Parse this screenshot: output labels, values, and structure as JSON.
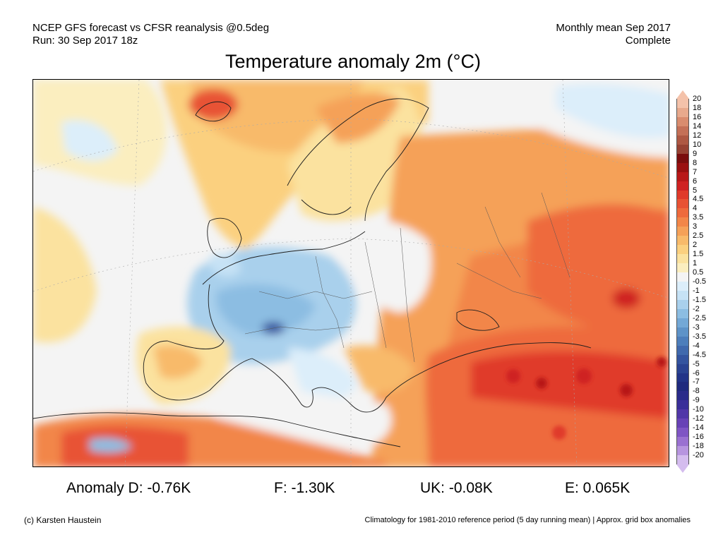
{
  "header": {
    "line1_left": "NCEP GFS forecast vs CFSR reanalysis @0.5deg",
    "line2_left": "Run: 30 Sep 2017 18z",
    "line1_right": "Monthly mean Sep 2017",
    "line2_right": "Complete"
  },
  "title": "Temperature anomaly 2m (°C)",
  "legend": {
    "labels": [
      "20",
      "18",
      "16",
      "14",
      "12",
      "10",
      "9",
      "8",
      "7",
      "6",
      "5",
      "4.5",
      "4",
      "3.5",
      "3",
      "2.5",
      "2",
      "1.5",
      "1",
      "0.5",
      "-0.5",
      "-1",
      "-1.5",
      "-2",
      "-2.5",
      "-3",
      "-3.5",
      "-4",
      "-4.5",
      "-5",
      "-6",
      "-7",
      "-8",
      "-9",
      "-10",
      "-12",
      "-14",
      "-16",
      "-18",
      "-20"
    ],
    "colors": [
      "#f4c2aa",
      "#e8a98c",
      "#d98c6e",
      "#c47057",
      "#ae5843",
      "#974233",
      "#7a0d0d",
      "#9a1010",
      "#b81818",
      "#cf2222",
      "#e03a2a",
      "#e85234",
      "#ee6a3c",
      "#f28648",
      "#f5a158",
      "#f8ba6a",
      "#fbd07f",
      "#fbe29f",
      "#fbeebf",
      "#f4f4f4",
      "#dceefa",
      "#c6e2f5",
      "#a9d0ec",
      "#8cbde2",
      "#73a8d6",
      "#5e93c8",
      "#4d7ebb",
      "#4069ad",
      "#34549f",
      "#2a4392",
      "#223488",
      "#1f2a7e",
      "#2a2b8a",
      "#3a2f99",
      "#5137a8",
      "#6842b6",
      "#7f55c4",
      "#9a71d1",
      "#b795df",
      "#d4bcee"
    ]
  },
  "stats": {
    "d": "Anomaly D: -0.76K",
    "f": "F: -1.30K",
    "uk": "UK: -0.08K",
    "e": "E: 0.065K"
  },
  "footer": {
    "left": "(c) Karsten Haustein",
    "right": "Climatology for 1981-2010 reference period (5 day running mean) | Approx. grid box anomalies"
  }
}
